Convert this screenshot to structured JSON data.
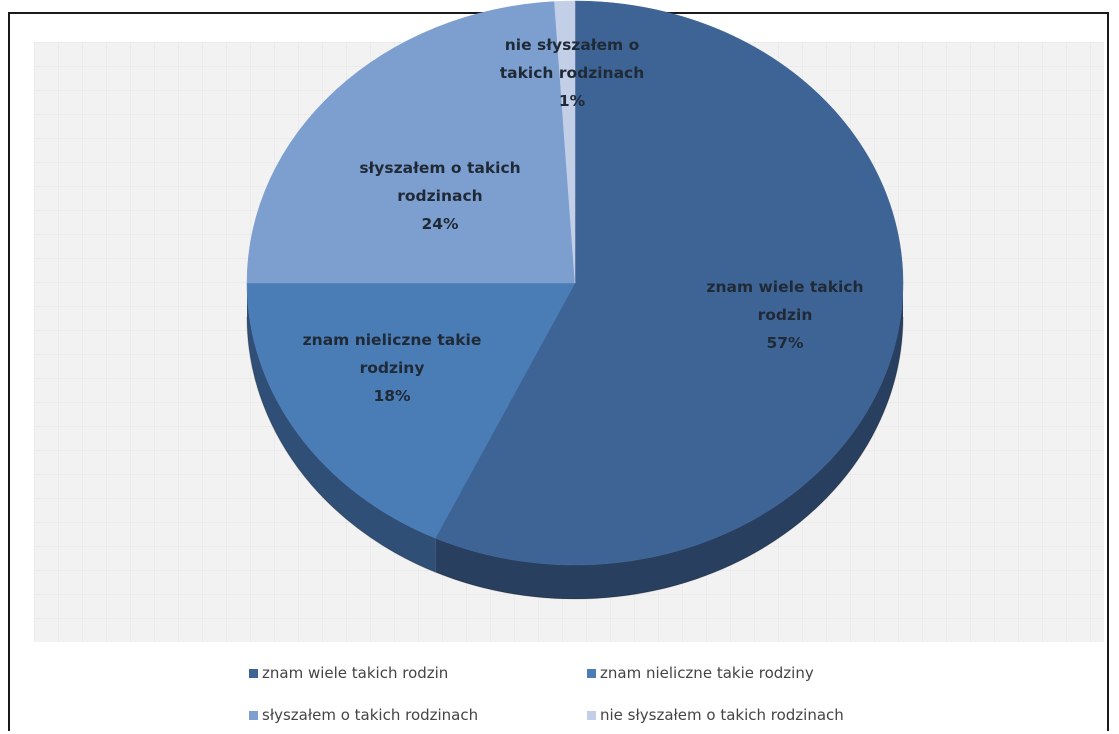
{
  "chart_data": {
    "type": "pie",
    "title": "",
    "style": "3d",
    "legend_position": "bottom",
    "slices": [
      {
        "label": "znam wiele takich rodzin",
        "value": 57,
        "value_label": "57%",
        "color": "#3e6496",
        "side_color": "#283f60"
      },
      {
        "label": "znam nieliczne takie rodziny",
        "value": 18,
        "value_label": "18%",
        "color": "#4a7cb6",
        "side_color": "#304f76"
      },
      {
        "label": "słyszałem o takich rodzinach",
        "value": 24,
        "value_label": "24%",
        "color": "#7d9fd0",
        "side_color": "#5876a0"
      },
      {
        "label": "nie słyszałem o takich rodzinach",
        "value": 1,
        "value_label": "1%",
        "color": "#c2cfe6",
        "side_color": "#94a4bd"
      }
    ],
    "data_labels": [
      {
        "lines": [
          "znam wiele takich",
          "rodzin",
          "57%"
        ]
      },
      {
        "lines": [
          "znam nieliczne takie",
          "rodziny",
          "18%"
        ]
      },
      {
        "lines": [
          "słyszałem o takich",
          "rodzinach",
          "24%"
        ]
      },
      {
        "lines": [
          "nie słyszałem o",
          "takich rodzinach",
          "1%"
        ]
      }
    ],
    "legend": [
      {
        "text": "znam wiele takich rodzin"
      },
      {
        "text": "znam nieliczne takie rodziny"
      },
      {
        "text": "słyszałem o takich rodzinach"
      },
      {
        "text": "nie słyszałem o takich rodzinach"
      }
    ]
  }
}
